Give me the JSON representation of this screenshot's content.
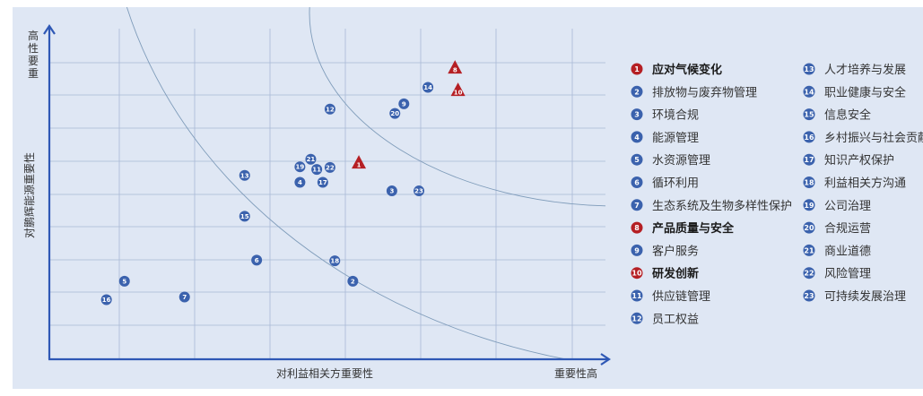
{
  "chart_data": {
    "type": "scatter",
    "xlabel": "对利益相关方重要性",
    "x_high_label": "重要性高",
    "ylabel": "对鹏辉能源重要性",
    "y_high_label": "重要性高",
    "xlim": [
      0,
      10
    ],
    "ylim": [
      0,
      10
    ],
    "grid": true,
    "legend_position": "right",
    "colors": {
      "background": "#dfe7f4",
      "dot": "#3b62ad",
      "triangle": "#b51f24",
      "axis": "#2f58b5",
      "grid": "#a8b9d6",
      "curve": "#7f9cba",
      "text": "#333333"
    },
    "points": [
      {
        "id": "16",
        "x": 0.95,
        "y": 1.78,
        "marker": "dot"
      },
      {
        "id": "5",
        "x": 1.25,
        "y": 2.34,
        "marker": "dot"
      },
      {
        "id": "7",
        "x": 2.25,
        "y": 1.86,
        "marker": "dot"
      },
      {
        "id": "13",
        "x": 3.25,
        "y": 5.55,
        "marker": "dot"
      },
      {
        "id": "15",
        "x": 3.25,
        "y": 4.31,
        "marker": "dot"
      },
      {
        "id": "6",
        "x": 3.45,
        "y": 2.98,
        "marker": "dot"
      },
      {
        "id": "4",
        "x": 4.17,
        "y": 5.34,
        "marker": "dot"
      },
      {
        "id": "19",
        "x": 4.17,
        "y": 5.81,
        "marker": "dot"
      },
      {
        "id": "21",
        "x": 4.35,
        "y": 6.04,
        "marker": "dot"
      },
      {
        "id": "11",
        "x": 4.45,
        "y": 5.73,
        "marker": "dot"
      },
      {
        "id": "22",
        "x": 4.67,
        "y": 5.79,
        "marker": "dot"
      },
      {
        "id": "17",
        "x": 4.55,
        "y": 5.34,
        "marker": "dot"
      },
      {
        "id": "12",
        "x": 4.67,
        "y": 7.56,
        "marker": "dot"
      },
      {
        "id": "18",
        "x": 4.75,
        "y": 2.96,
        "marker": "dot"
      },
      {
        "id": "2",
        "x": 5.05,
        "y": 2.34,
        "marker": "dot"
      },
      {
        "id": "1",
        "x": 5.15,
        "y": 5.92,
        "marker": "triangle"
      },
      {
        "id": "3",
        "x": 5.7,
        "y": 5.08,
        "marker": "dot"
      },
      {
        "id": "23",
        "x": 6.15,
        "y": 5.08,
        "marker": "dot"
      },
      {
        "id": "20",
        "x": 5.75,
        "y": 7.43,
        "marker": "dot"
      },
      {
        "id": "9",
        "x": 5.9,
        "y": 7.72,
        "marker": "dot"
      },
      {
        "id": "14",
        "x": 6.3,
        "y": 8.22,
        "marker": "dot"
      },
      {
        "id": "8",
        "x": 6.75,
        "y": 8.8,
        "marker": "triangle"
      },
      {
        "id": "10",
        "x": 6.8,
        "y": 8.12,
        "marker": "triangle"
      }
    ],
    "legend": [
      {
        "num": "1",
        "label": "应对气候变化",
        "highlight": true
      },
      {
        "num": "2",
        "label": "排放物与废弃物管理",
        "highlight": false
      },
      {
        "num": "3",
        "label": "环境合规",
        "highlight": false
      },
      {
        "num": "4",
        "label": "能源管理",
        "highlight": false
      },
      {
        "num": "5",
        "label": "水资源管理",
        "highlight": false
      },
      {
        "num": "6",
        "label": "循环利用",
        "highlight": false
      },
      {
        "num": "7",
        "label": "生态系统及生物多样性保护",
        "highlight": false
      },
      {
        "num": "8",
        "label": "产品质量与安全",
        "highlight": true
      },
      {
        "num": "9",
        "label": "客户服务",
        "highlight": false
      },
      {
        "num": "10",
        "label": "研发创新",
        "highlight": true
      },
      {
        "num": "11",
        "label": "供应链管理",
        "highlight": false
      },
      {
        "num": "12",
        "label": "员工权益",
        "highlight": false
      },
      {
        "num": "13",
        "label": "人才培养与发展",
        "highlight": false
      },
      {
        "num": "14",
        "label": "职业健康与安全",
        "highlight": false
      },
      {
        "num": "15",
        "label": "信息安全",
        "highlight": false
      },
      {
        "num": "16",
        "label": "乡村振兴与社会贡献",
        "highlight": false
      },
      {
        "num": "17",
        "label": "知识产权保护",
        "highlight": false
      },
      {
        "num": "18",
        "label": "利益相关方沟通",
        "highlight": false
      },
      {
        "num": "19",
        "label": "公司治理",
        "highlight": false
      },
      {
        "num": "20",
        "label": "合规运营",
        "highlight": false
      },
      {
        "num": "21",
        "label": "商业道德",
        "highlight": false
      },
      {
        "num": "22",
        "label": "风险管理",
        "highlight": false
      },
      {
        "num": "23",
        "label": "可持续发展治理",
        "highlight": false
      }
    ]
  }
}
